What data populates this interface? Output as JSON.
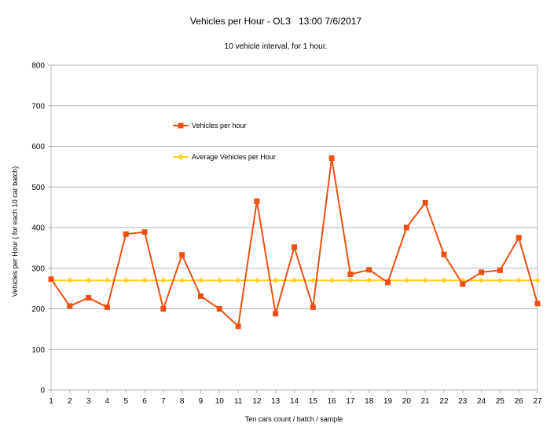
{
  "chart_data": {
    "type": "line",
    "title": "Vehicles per Hour - OL3   13:00 7/6/2017",
    "subtitle": "10 vehicle interval, for 1 hour.",
    "xlabel": "Ten cars count / batch / sample",
    "ylabel": "Vehicles per Hour ( for each 10 car batch)",
    "x": [
      1,
      2,
      3,
      4,
      5,
      6,
      7,
      8,
      9,
      10,
      11,
      12,
      13,
      14,
      15,
      16,
      17,
      18,
      19,
      20,
      21,
      22,
      23,
      24,
      25,
      26,
      27
    ],
    "xlim": [
      1,
      27
    ],
    "ylim": [
      0,
      800
    ],
    "yticks": [
      0,
      100,
      200,
      300,
      400,
      500,
      600,
      700,
      800
    ],
    "grid": "horizontal",
    "legend_position": "top-left",
    "series": [
      {
        "name": "Vehicles per hour",
        "color": "#f04e12",
        "marker": "square",
        "values": [
          273,
          207,
          227,
          204,
          384,
          389,
          200,
          333,
          231,
          200,
          157,
          465,
          188,
          352,
          204,
          571,
          285,
          296,
          265,
          400,
          461,
          334,
          261,
          290,
          295,
          375,
          213
        ]
      },
      {
        "name": "Average Vehicles per Hour",
        "color": "#ffd320",
        "marker": "diamond",
        "values": [
          270,
          270,
          270,
          270,
          270,
          270,
          270,
          270,
          270,
          270,
          270,
          270,
          270,
          270,
          270,
          270,
          270,
          270,
          270,
          270,
          270,
          270,
          270,
          270,
          270,
          270,
          270
        ]
      }
    ]
  }
}
